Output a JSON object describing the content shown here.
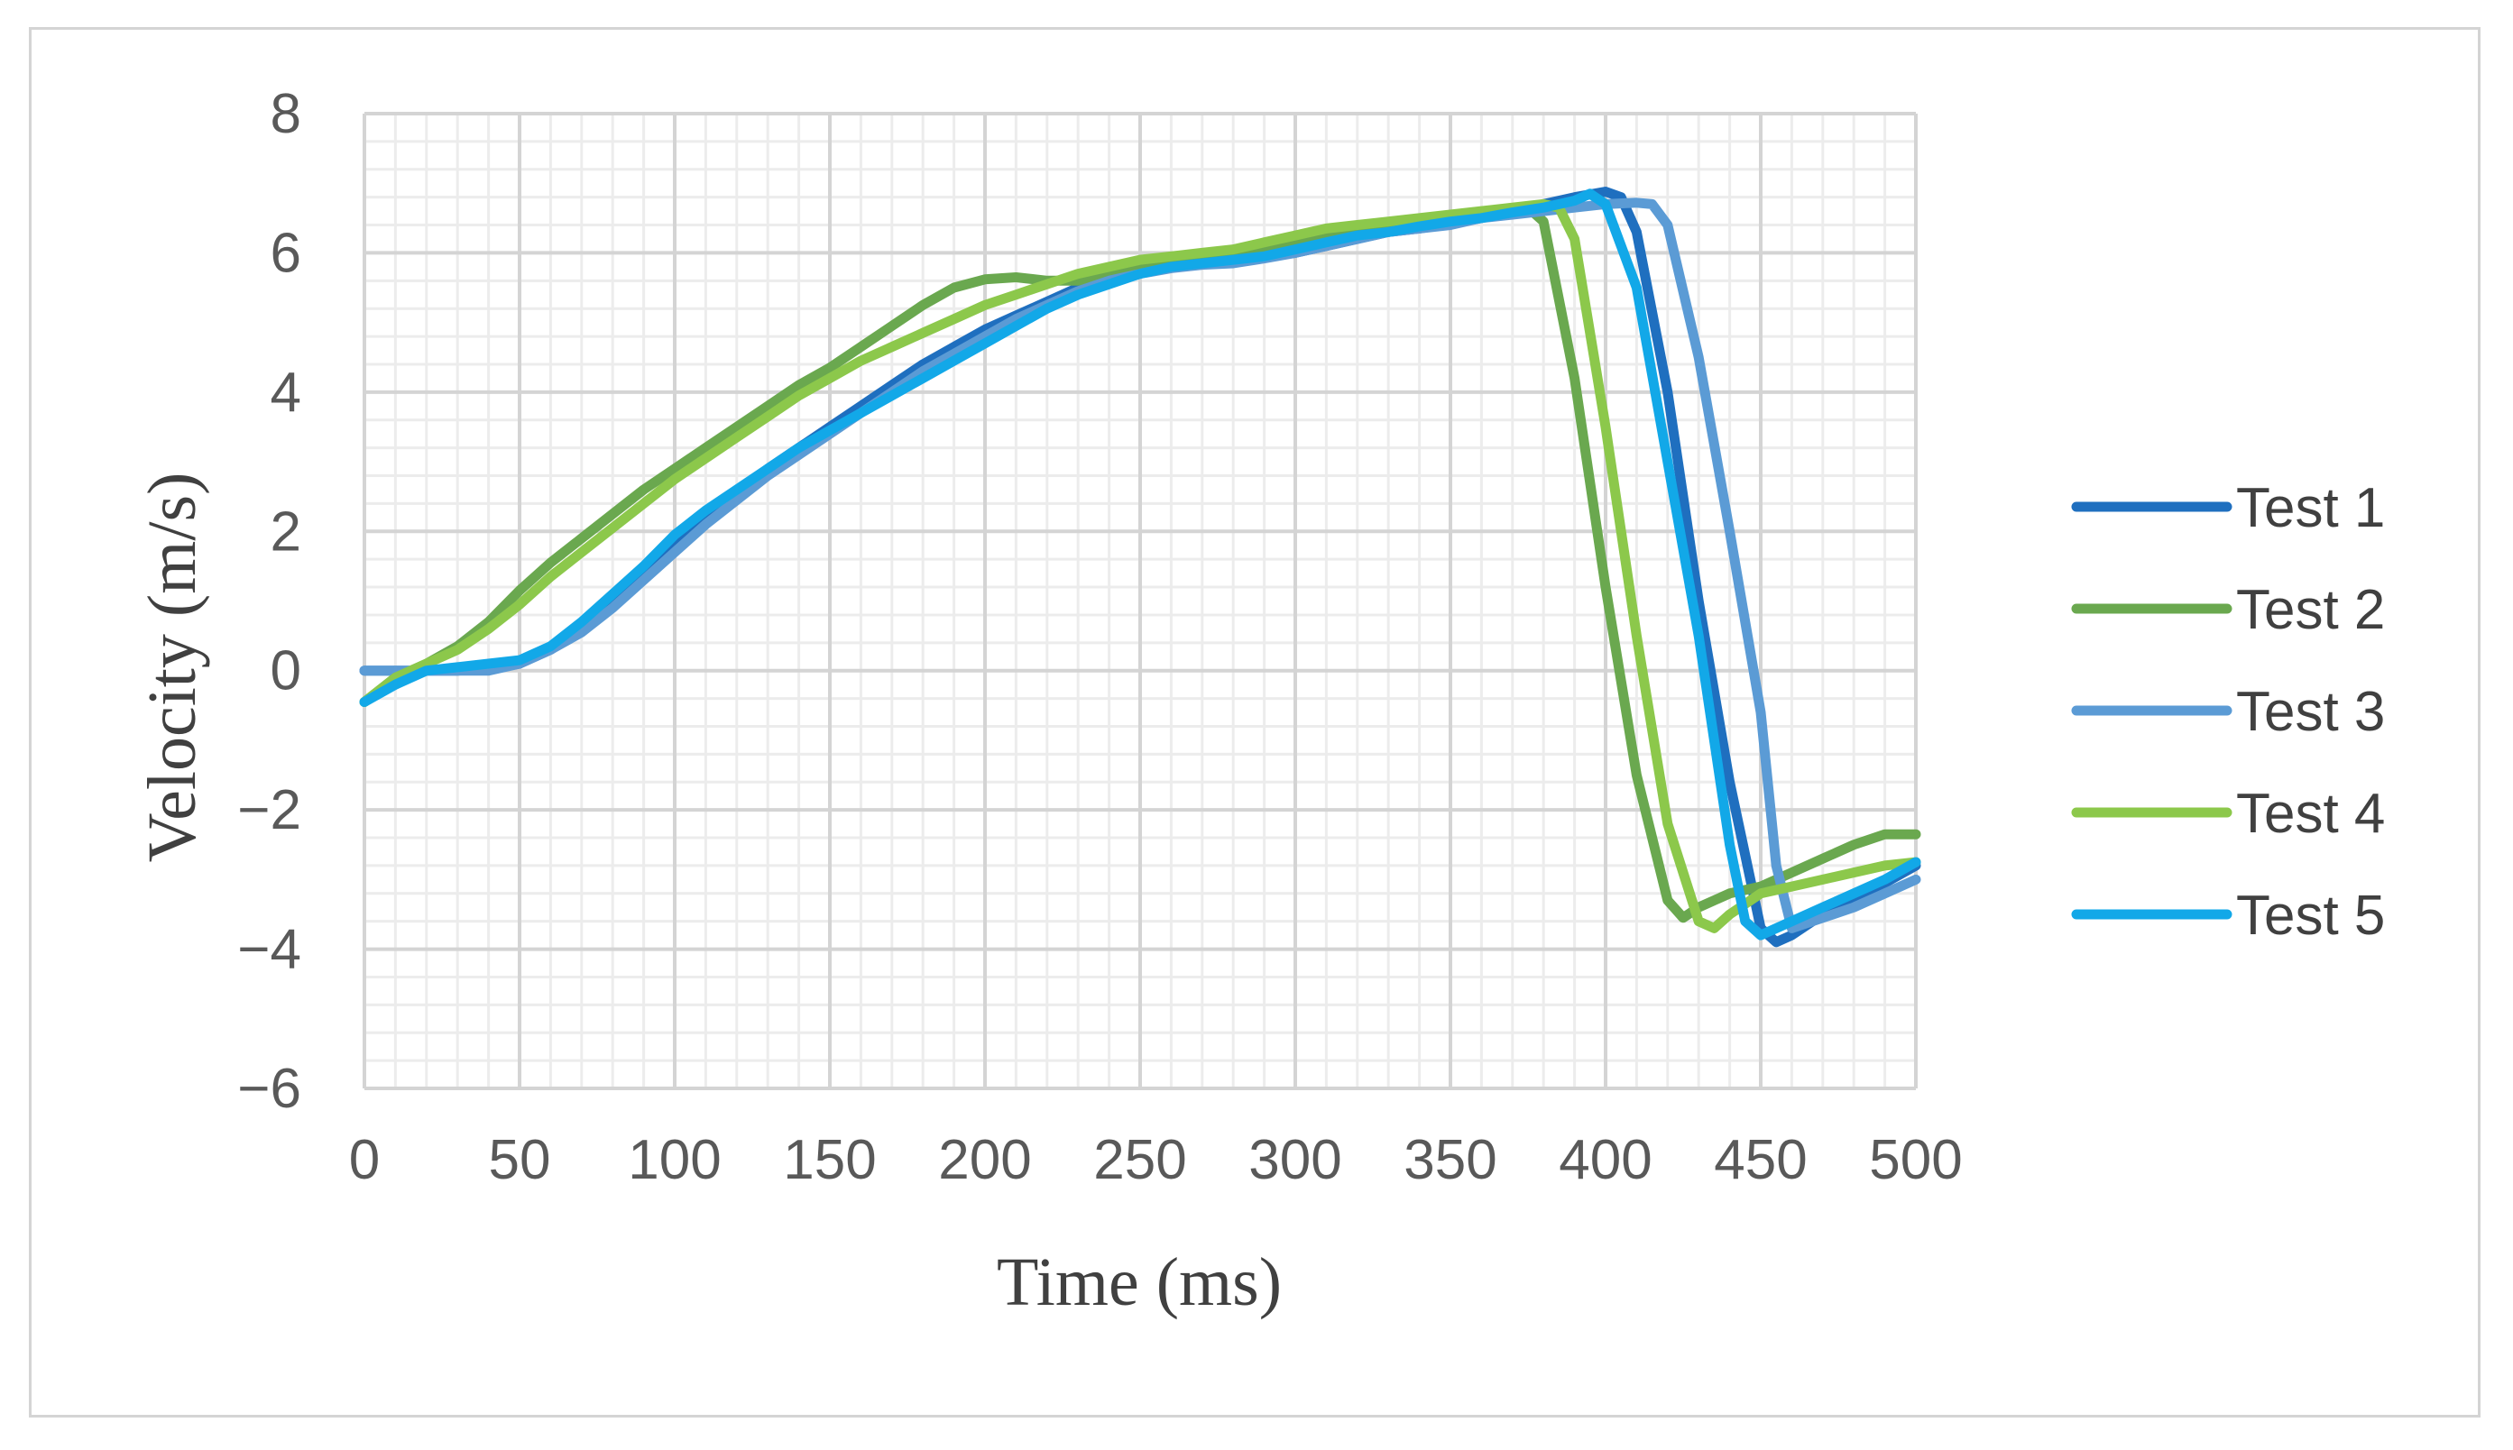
{
  "chart_data": {
    "type": "line",
    "title": "",
    "xlabel": "Time (ms)",
    "ylabel": "Velocity (m/s)",
    "xlim": [
      0,
      500
    ],
    "ylim": [
      -6,
      8
    ],
    "xticks": [
      0,
      50,
      100,
      150,
      200,
      250,
      300,
      350,
      400,
      450,
      500
    ],
    "yticks": [
      -6,
      -4,
      -2,
      0,
      2,
      4,
      6,
      8
    ],
    "ytick_labels": [
      "−6",
      "−4",
      "−2",
      "0",
      "2",
      "4",
      "6",
      "8"
    ],
    "grid": true,
    "legend_position": "right",
    "series": [
      {
        "name": "Test 1",
        "color": "#1f6fbf",
        "x": [
          0,
          10,
          20,
          30,
          40,
          50,
          60,
          70,
          80,
          90,
          100,
          110,
          120,
          130,
          140,
          150,
          160,
          170,
          180,
          190,
          200,
          210,
          220,
          230,
          240,
          250,
          260,
          270,
          280,
          290,
          300,
          310,
          320,
          330,
          340,
          350,
          360,
          370,
          380,
          390,
          400,
          405,
          410,
          420,
          430,
          440,
          450,
          455,
          460,
          470,
          480,
          490,
          500
        ],
        "y": [
          0.0,
          0.0,
          0.0,
          0.0,
          0.02,
          0.1,
          0.3,
          0.6,
          1.0,
          1.4,
          1.8,
          2.2,
          2.55,
          2.9,
          3.2,
          3.5,
          3.8,
          4.1,
          4.4,
          4.65,
          4.9,
          5.1,
          5.3,
          5.5,
          5.65,
          5.75,
          5.82,
          5.88,
          5.9,
          5.95,
          6.0,
          6.1,
          6.2,
          6.3,
          6.35,
          6.42,
          6.5,
          6.6,
          6.7,
          6.8,
          6.88,
          6.8,
          6.3,
          4.0,
          1.0,
          -1.6,
          -3.7,
          -3.9,
          -3.8,
          -3.5,
          -3.3,
          -3.05,
          -2.8
        ]
      },
      {
        "name": "Test 2",
        "color": "#6aa84f",
        "x": [
          0,
          10,
          20,
          30,
          40,
          50,
          60,
          70,
          80,
          90,
          100,
          110,
          120,
          130,
          140,
          150,
          160,
          170,
          180,
          190,
          200,
          210,
          220,
          230,
          240,
          250,
          260,
          270,
          280,
          290,
          300,
          310,
          320,
          330,
          340,
          350,
          360,
          370,
          375,
          380,
          390,
          400,
          410,
          420,
          425,
          430,
          440,
          450,
          460,
          470,
          480,
          490,
          500
        ],
        "y": [
          -0.45,
          -0.1,
          0.1,
          0.35,
          0.7,
          1.15,
          1.55,
          1.9,
          2.25,
          2.6,
          2.9,
          3.2,
          3.5,
          3.8,
          4.1,
          4.35,
          4.65,
          4.95,
          5.25,
          5.5,
          5.62,
          5.65,
          5.6,
          5.6,
          5.7,
          5.8,
          5.85,
          5.9,
          5.95,
          6.05,
          6.15,
          6.25,
          6.32,
          6.38,
          6.45,
          6.5,
          6.55,
          6.6,
          6.65,
          6.45,
          4.2,
          1.2,
          -1.5,
          -3.3,
          -3.55,
          -3.4,
          -3.2,
          -3.1,
          -2.9,
          -2.7,
          -2.5,
          -2.35,
          -2.35
        ]
      },
      {
        "name": "Test 3",
        "color": "#5b9bd5",
        "x": [
          0,
          10,
          20,
          30,
          40,
          50,
          60,
          70,
          80,
          90,
          100,
          110,
          120,
          130,
          140,
          150,
          160,
          170,
          180,
          190,
          200,
          210,
          220,
          230,
          240,
          250,
          260,
          270,
          280,
          290,
          300,
          310,
          320,
          330,
          340,
          350,
          360,
          370,
          380,
          390,
          400,
          410,
          415,
          420,
          430,
          440,
          450,
          455,
          460,
          470,
          480,
          490,
          500
        ],
        "y": [
          0.0,
          0.0,
          0.0,
          0.0,
          0.0,
          0.1,
          0.3,
          0.55,
          0.9,
          1.3,
          1.7,
          2.1,
          2.45,
          2.8,
          3.1,
          3.4,
          3.7,
          4.0,
          4.3,
          4.55,
          4.8,
          5.05,
          5.25,
          5.45,
          5.6,
          5.7,
          5.78,
          5.83,
          5.85,
          5.92,
          6.0,
          6.1,
          6.2,
          6.3,
          6.35,
          6.4,
          6.5,
          6.55,
          6.6,
          6.65,
          6.7,
          6.72,
          6.7,
          6.4,
          4.5,
          2.0,
          -0.6,
          -2.8,
          -3.7,
          -3.55,
          -3.4,
          -3.2,
          -3.0
        ]
      },
      {
        "name": "Test 4",
        "color": "#8cc84b",
        "x": [
          0,
          10,
          20,
          30,
          40,
          50,
          60,
          70,
          80,
          90,
          100,
          110,
          120,
          130,
          140,
          150,
          160,
          170,
          180,
          190,
          200,
          210,
          220,
          230,
          240,
          250,
          260,
          270,
          280,
          290,
          300,
          310,
          320,
          330,
          340,
          350,
          360,
          370,
          380,
          385,
          390,
          400,
          410,
          420,
          430,
          435,
          440,
          450,
          460,
          470,
          480,
          490,
          500
        ],
        "y": [
          -0.45,
          -0.1,
          0.1,
          0.3,
          0.6,
          0.95,
          1.35,
          1.7,
          2.05,
          2.4,
          2.75,
          3.05,
          3.35,
          3.65,
          3.95,
          4.2,
          4.45,
          4.65,
          4.85,
          5.05,
          5.25,
          5.4,
          5.55,
          5.7,
          5.8,
          5.9,
          5.95,
          6.0,
          6.05,
          6.15,
          6.25,
          6.35,
          6.4,
          6.45,
          6.5,
          6.55,
          6.6,
          6.65,
          6.7,
          6.65,
          6.2,
          3.5,
          0.5,
          -2.2,
          -3.6,
          -3.7,
          -3.5,
          -3.2,
          -3.1,
          -3.0,
          -2.9,
          -2.8,
          -2.75
        ]
      },
      {
        "name": "Test 5",
        "color": "#12a8e8",
        "x": [
          0,
          10,
          20,
          30,
          40,
          50,
          60,
          70,
          80,
          90,
          100,
          110,
          120,
          130,
          140,
          150,
          160,
          170,
          180,
          190,
          200,
          210,
          220,
          230,
          240,
          250,
          260,
          270,
          280,
          290,
          300,
          310,
          320,
          330,
          340,
          350,
          360,
          370,
          380,
          390,
          395,
          400,
          410,
          420,
          430,
          440,
          445,
          450,
          460,
          470,
          480,
          490,
          500
        ],
        "y": [
          -0.45,
          -0.2,
          0.0,
          0.05,
          0.1,
          0.15,
          0.35,
          0.7,
          1.1,
          1.5,
          1.95,
          2.3,
          2.6,
          2.9,
          3.2,
          3.45,
          3.7,
          3.95,
          4.2,
          4.45,
          4.7,
          4.95,
          5.2,
          5.4,
          5.55,
          5.7,
          5.8,
          5.85,
          5.9,
          5.95,
          6.05,
          6.15,
          6.25,
          6.3,
          6.38,
          6.45,
          6.5,
          6.58,
          6.65,
          6.75,
          6.85,
          6.7,
          5.5,
          3.0,
          0.5,
          -2.5,
          -3.6,
          -3.8,
          -3.6,
          -3.4,
          -3.2,
          -3.0,
          -2.75
        ]
      }
    ]
  }
}
